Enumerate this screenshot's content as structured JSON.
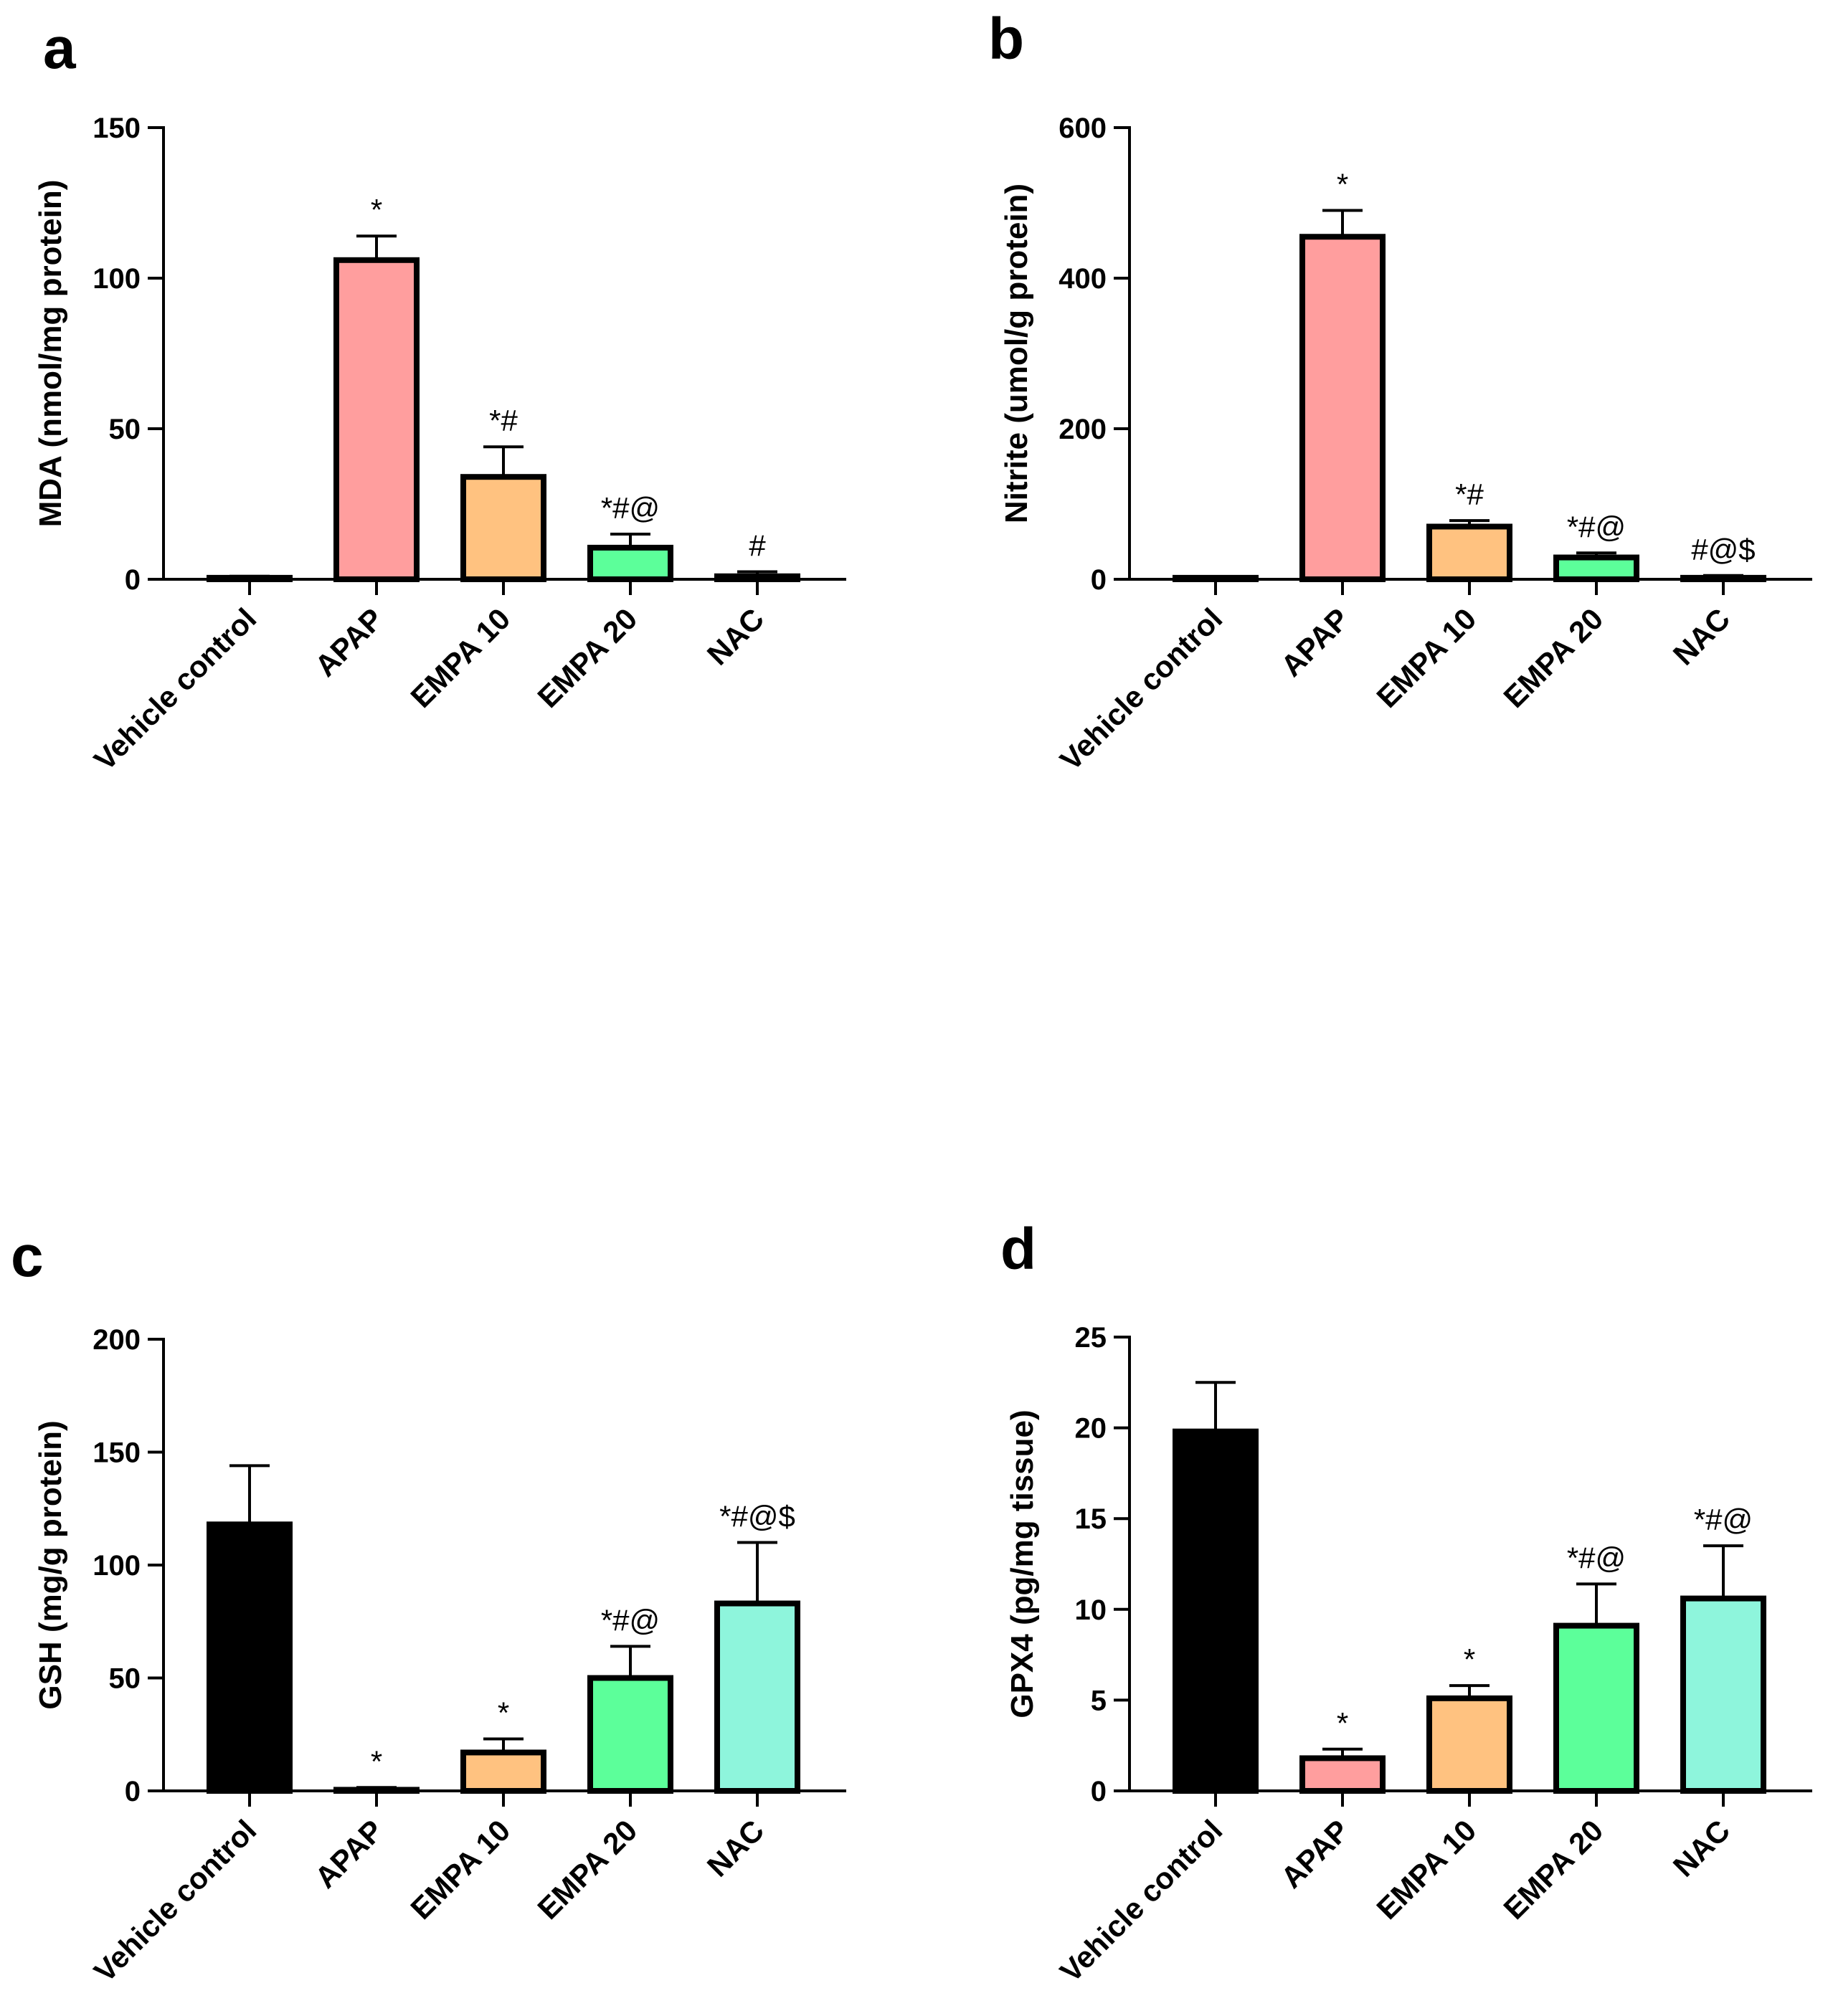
{
  "chart_data": [
    {
      "panel_label": "a",
      "type": "bar",
      "categories": [
        "Vehicle control",
        "APAP",
        "EMPA 10",
        "EMPA 20",
        "NAC"
      ],
      "values": [
        0.5,
        106,
        34,
        10.5,
        1
      ],
      "errors": [
        0.5,
        8,
        10,
        4.5,
        1.5
      ],
      "annotations": [
        "",
        "*",
        "*#",
        "*#@",
        "#"
      ],
      "colors": [
        "#000000",
        "#ff9e9e",
        "#ffc280",
        "#5cff9a",
        "#8ef5dc"
      ],
      "ylabel": "MDA (nmol/mg protein)",
      "xlabel": "",
      "ylim": [
        0,
        150
      ],
      "yticks": [
        0,
        50,
        100,
        150
      ],
      "ytick_labels": [
        "0",
        "50",
        "100",
        "150"
      ]
    },
    {
      "panel_label": "b",
      "type": "bar",
      "categories": [
        "Vehicle control",
        "APAP",
        "EMPA 10",
        "EMPA 20",
        "NAC"
      ],
      "values": [
        2,
        455,
        70,
        29,
        2
      ],
      "errors": [
        1,
        35,
        8,
        6,
        3
      ],
      "annotations": [
        "",
        "*",
        "*#",
        "*#@",
        "#@$"
      ],
      "colors": [
        "#000000",
        "#ff9e9e",
        "#ffc280",
        "#5cff9a",
        "#8ef5dc"
      ],
      "ylabel": "Nitrite (umol/g protein)",
      "xlabel": "",
      "ylim": [
        0,
        600
      ],
      "yticks": [
        0,
        200,
        400,
        600
      ],
      "ytick_labels": [
        "0",
        "200",
        "400",
        "600"
      ]
    },
    {
      "panel_label": "c",
      "type": "bar",
      "categories": [
        "Vehicle control",
        "APAP",
        "EMPA 10",
        "EMPA 20",
        "NAC"
      ],
      "values": [
        118,
        0.5,
        17,
        50,
        83
      ],
      "errors": [
        26,
        1,
        6,
        14,
        27
      ],
      "annotations": [
        "",
        "*",
        "*",
        "*#@",
        "*#@$"
      ],
      "colors": [
        "#000000",
        "#ff9e9e",
        "#ffc280",
        "#5cff9a",
        "#8ef5dc"
      ],
      "ylabel": "GSH (mg/g protein)",
      "xlabel": "",
      "ylim": [
        0,
        200
      ],
      "yticks": [
        0,
        50,
        100,
        150,
        200
      ],
      "ytick_labels": [
        "0",
        "50",
        "100",
        "150",
        "200"
      ]
    },
    {
      "panel_label": "d",
      "type": "bar",
      "categories": [
        "Vehicle control",
        "APAP",
        "EMPA 10",
        "EMPA 20",
        "NAC"
      ],
      "values": [
        19.8,
        1.8,
        5.1,
        9.1,
        10.6
      ],
      "errors": [
        2.7,
        0.5,
        0.7,
        2.3,
        2.9
      ],
      "annotations": [
        "",
        "*",
        "*",
        "*#@",
        "*#@"
      ],
      "colors": [
        "#000000",
        "#ff9e9e",
        "#ffc280",
        "#5cff9a",
        "#8ef5dc"
      ],
      "ylabel": "GPX4 (pg/mg tissue)",
      "xlabel": "",
      "ylim": [
        0,
        25
      ],
      "yticks": [
        0,
        5,
        10,
        15,
        20,
        25
      ],
      "ytick_labels": [
        "0",
        "5",
        "10",
        "15",
        "20",
        "25"
      ]
    }
  ]
}
